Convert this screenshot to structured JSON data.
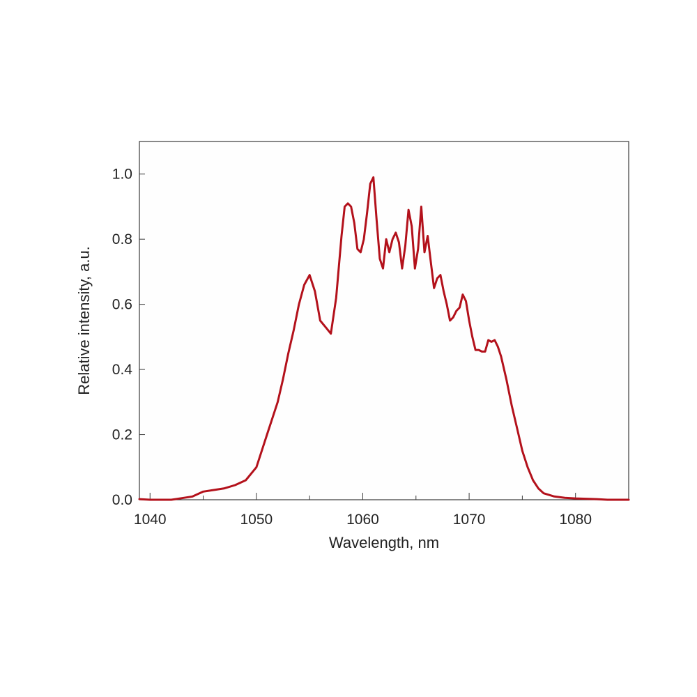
{
  "chart_data": {
    "type": "line",
    "title": "",
    "xlabel": "Wavelength, nm",
    "ylabel": "Relative intensity, a.u.",
    "xlim": [
      1039,
      1085
    ],
    "ylim": [
      0,
      1.1
    ],
    "x_ticks": [
      1040,
      1050,
      1060,
      1070,
      1080
    ],
    "y_ticks": [
      0.0,
      0.2,
      0.4,
      0.6,
      0.8,
      1.0
    ],
    "x_tick_labels": [
      "1040",
      "1050",
      "1060",
      "1070",
      "1080"
    ],
    "y_tick_labels": [
      "0.0",
      "0.2",
      "0.4",
      "0.6",
      "0.8",
      "1.0"
    ],
    "x_minor_step": 5,
    "grid": false,
    "legend": "none",
    "line_color": "#b3111b",
    "series": [
      {
        "x": [
          1039,
          1040,
          1041,
          1042,
          1043,
          1044,
          1045,
          1046,
          1047,
          1048,
          1049,
          1050,
          1051,
          1052,
          1052.5,
          1053,
          1053.5,
          1054,
          1054.5,
          1055,
          1055.5,
          1056,
          1056.5,
          1057,
          1057.5,
          1058,
          1058.3,
          1058.6,
          1058.9,
          1059.2,
          1059.5,
          1059.8,
          1060.1,
          1060.4,
          1060.7,
          1061,
          1061.3,
          1061.6,
          1061.9,
          1062.2,
          1062.5,
          1062.8,
          1063.1,
          1063.4,
          1063.7,
          1064,
          1064.3,
          1064.6,
          1064.9,
          1065.2,
          1065.5,
          1065.8,
          1066.1,
          1066.4,
          1066.7,
          1067,
          1067.3,
          1067.6,
          1067.9,
          1068.2,
          1068.5,
          1068.8,
          1069.1,
          1069.4,
          1069.7,
          1070,
          1070.3,
          1070.6,
          1070.9,
          1071.2,
          1071.5,
          1071.8,
          1072.1,
          1072.4,
          1072.7,
          1073,
          1073.5,
          1074,
          1074.5,
          1075,
          1075.5,
          1076,
          1076.5,
          1077,
          1078,
          1079,
          1080,
          1081,
          1082,
          1083,
          1084,
          1085
        ],
        "y": [
          0.002,
          0.0,
          0.0,
          0.0,
          0.005,
          0.01,
          0.025,
          0.03,
          0.035,
          0.045,
          0.06,
          0.1,
          0.2,
          0.3,
          0.37,
          0.45,
          0.52,
          0.6,
          0.66,
          0.69,
          0.64,
          0.55,
          0.53,
          0.51,
          0.62,
          0.81,
          0.9,
          0.91,
          0.9,
          0.85,
          0.77,
          0.76,
          0.8,
          0.88,
          0.97,
          0.99,
          0.86,
          0.74,
          0.71,
          0.8,
          0.76,
          0.8,
          0.82,
          0.79,
          0.71,
          0.78,
          0.89,
          0.84,
          0.71,
          0.77,
          0.9,
          0.76,
          0.81,
          0.73,
          0.65,
          0.68,
          0.69,
          0.64,
          0.6,
          0.55,
          0.56,
          0.58,
          0.59,
          0.63,
          0.61,
          0.55,
          0.5,
          0.46,
          0.46,
          0.455,
          0.455,
          0.49,
          0.485,
          0.49,
          0.47,
          0.44,
          0.37,
          0.29,
          0.22,
          0.15,
          0.1,
          0.06,
          0.035,
          0.02,
          0.01,
          0.006,
          0.004,
          0.003,
          0.002,
          0.0,
          0.0,
          0.0
        ]
      }
    ]
  }
}
